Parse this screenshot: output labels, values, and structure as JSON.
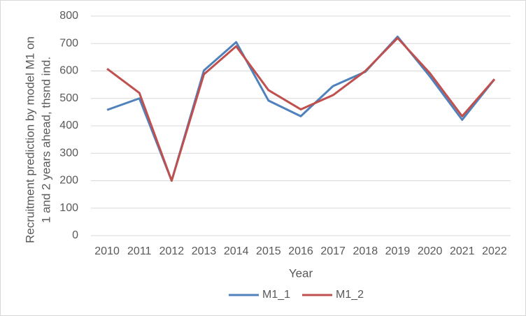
{
  "chart_data": {
    "type": "line",
    "xlabel": "Year",
    "ylabel": [
      "Recruitment prediction by model M1 on",
      "1 and 2 years ahead, thsnd ind."
    ],
    "categories": [
      "2010",
      "2011",
      "2012",
      "2013",
      "2014",
      "2015",
      "2016",
      "2017",
      "2018",
      "2019",
      "2020",
      "2021",
      "2022"
    ],
    "series": [
      {
        "name": "M1_1",
        "color": "#4f81bd",
        "values": [
          458,
          500,
          200,
          602,
          705,
          492,
          435,
          545,
          597,
          725,
          580,
          422,
          570
        ]
      },
      {
        "name": "M1_2",
        "color": "#c0504d",
        "values": [
          608,
          520,
          200,
          588,
          690,
          530,
          460,
          512,
          600,
          720,
          592,
          435,
          570
        ]
      }
    ],
    "ylim": [
      0,
      800
    ],
    "yticks": [
      0,
      100,
      200,
      300,
      400,
      500,
      600,
      700,
      800
    ],
    "grid": true,
    "legend": "bottom"
  }
}
